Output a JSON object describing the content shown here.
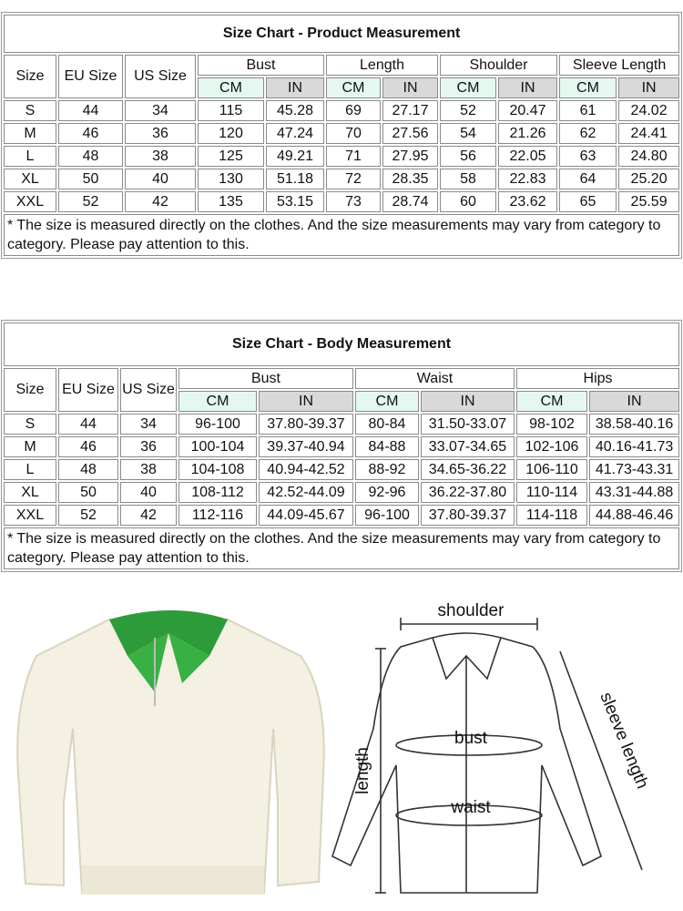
{
  "product_table": {
    "title": "Size Chart - Product Measurement",
    "headers": [
      "Size",
      "EU Size",
      "US Size"
    ],
    "groups": [
      "Bust",
      "Length",
      "Shoulder",
      "Sleeve Length"
    ],
    "units": [
      "CM",
      "IN"
    ],
    "rows": [
      [
        "S",
        "44",
        "34",
        "115",
        "45.28",
        "69",
        "27.17",
        "52",
        "20.47",
        "61",
        "24.02"
      ],
      [
        "M",
        "46",
        "36",
        "120",
        "47.24",
        "70",
        "27.56",
        "54",
        "21.26",
        "62",
        "24.41"
      ],
      [
        "L",
        "48",
        "38",
        "125",
        "49.21",
        "71",
        "27.95",
        "56",
        "22.05",
        "63",
        "24.80"
      ],
      [
        "XL",
        "50",
        "40",
        "130",
        "51.18",
        "72",
        "28.35",
        "58",
        "22.83",
        "64",
        "25.20"
      ],
      [
        "XXL",
        "52",
        "42",
        "135",
        "53.15",
        "73",
        "28.74",
        "60",
        "23.62",
        "65",
        "25.59"
      ]
    ],
    "note": "* The size is measured directly on the clothes. And the size measurements may vary from category to category. Please pay attention to this."
  },
  "body_table": {
    "title": "Size Chart - Body Measurement",
    "headers": [
      "Size",
      "EU Size",
      "US Size"
    ],
    "groups": [
      "Bust",
      "Waist",
      "Hips"
    ],
    "units": [
      "CM",
      "IN"
    ],
    "rows": [
      [
        "S",
        "44",
        "34",
        "96-100",
        "37.80-39.37",
        "80-84",
        "31.50-33.07",
        "98-102",
        "38.58-40.16"
      ],
      [
        "M",
        "46",
        "36",
        "100-104",
        "39.37-40.94",
        "84-88",
        "33.07-34.65",
        "102-106",
        "40.16-41.73"
      ],
      [
        "L",
        "48",
        "38",
        "104-108",
        "40.94-42.52",
        "88-92",
        "34.65-36.22",
        "106-110",
        "41.73-43.31"
      ],
      [
        "XL",
        "50",
        "40",
        "108-112",
        "42.52-44.09",
        "92-96",
        "36.22-37.80",
        "110-114",
        "43.31-44.88"
      ],
      [
        "XXL",
        "52",
        "42",
        "112-116",
        "44.09-45.67",
        "96-100",
        "37.80-39.37",
        "114-118",
        "44.88-46.46"
      ]
    ],
    "note": "* The size is measured directly on the clothes. And the size measurements may vary from category to category. Please pay attention to this."
  },
  "diagram": {
    "shoulder": "shoulder",
    "bust": "bust",
    "waist": "waist",
    "length": "length",
    "sleeve_length": "sleeve length"
  }
}
